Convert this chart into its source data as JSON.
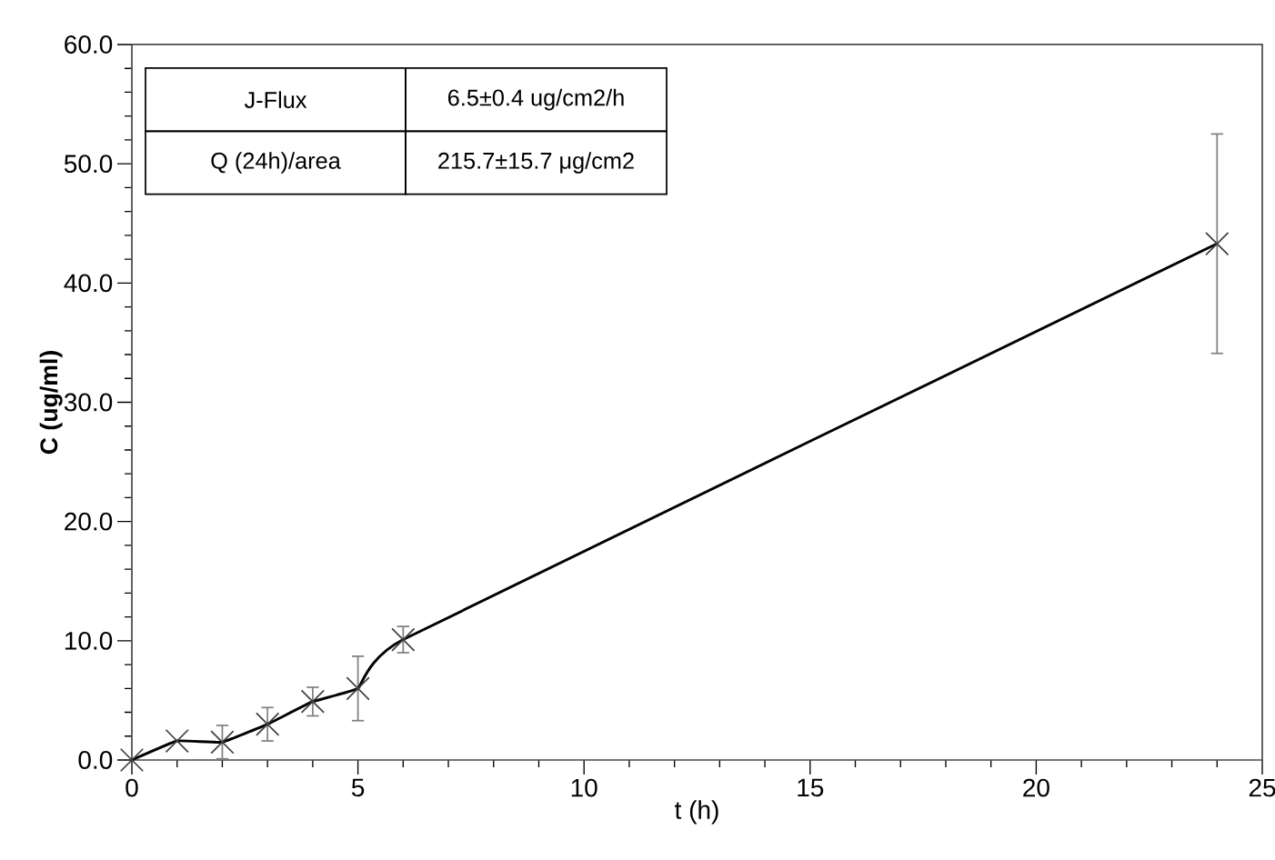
{
  "chart_data": {
    "type": "line",
    "xlabel": "t (h)",
    "ylabel": "C (ug/ml)",
    "x": [
      0,
      1,
      2,
      3,
      4,
      5,
      6,
      24
    ],
    "values": [
      0,
      1.6,
      1.5,
      3.0,
      4.9,
      6.0,
      10.1,
      43.3
    ],
    "errors": [
      null,
      null,
      1.4,
      1.4,
      1.2,
      2.7,
      1.1,
      9.2
    ],
    "color": "#000000",
    "marker": "cross",
    "line_style": "solid",
    "grid": false,
    "xlim": [
      0,
      25
    ],
    "xticks": [
      0,
      5,
      10,
      15,
      20,
      25
    ],
    "ylim": [
      0,
      60
    ],
    "yticks": [
      {
        "value": 0,
        "label": "0.0"
      },
      {
        "value": 10,
        "label": "10.0"
      },
      {
        "value": 20,
        "label": "20.0"
      },
      {
        "value": 30,
        "label": "30.0"
      },
      {
        "value": 40,
        "label": "40.0"
      },
      {
        "value": 50,
        "label": "50.0"
      },
      {
        "value": 60,
        "label": "60.0"
      }
    ],
    "annotations": [
      "J-Flux",
      "6.5±0.4 ug/cm2/h",
      "Q (24h)/area",
      "215.7±15.7 μg/cm2"
    ]
  }
}
